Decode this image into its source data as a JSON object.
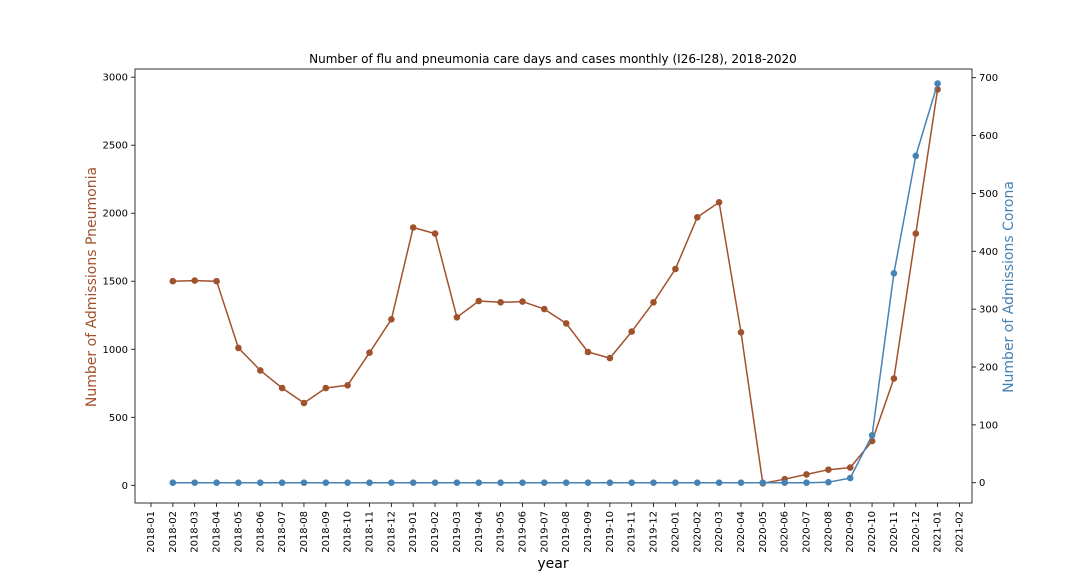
{
  "chart_data": {
    "type": "line",
    "title": "Number of flu and pneumonia care days and cases monthly (I26-I28), 2018-2020",
    "xlabel": "year",
    "ylabel_left": "Number of Admissions Pneumonia",
    "ylabel_right": "Number of Admissions Corona",
    "x_ticks": [
      "2018-01",
      "2018-02",
      "2018-03",
      "2018-04",
      "2018-05",
      "2018-06",
      "2018-07",
      "2018-08",
      "2018-09",
      "2018-10",
      "2018-11",
      "2018-12",
      "2019-01",
      "2019-02",
      "2019-03",
      "2019-04",
      "2019-05",
      "2019-06",
      "2019-07",
      "2019-08",
      "2019-09",
      "2019-10",
      "2019-11",
      "2019-12",
      "2020-01",
      "2020-02",
      "2020-03",
      "2020-04",
      "2020-05",
      "2020-06",
      "2020-07",
      "2020-08",
      "2020-09",
      "2020-10",
      "2020-11",
      "2020-12",
      "2021-01",
      "2021-02"
    ],
    "x": [
      "2018-02",
      "2018-03",
      "2018-04",
      "2018-05",
      "2018-06",
      "2018-07",
      "2018-08",
      "2018-09",
      "2018-10",
      "2018-11",
      "2018-12",
      "2019-01",
      "2019-02",
      "2019-03",
      "2019-04",
      "2019-05",
      "2019-06",
      "2019-07",
      "2019-08",
      "2019-09",
      "2019-10",
      "2019-11",
      "2019-12",
      "2020-01",
      "2020-02",
      "2020-03",
      "2020-04",
      "2020-05",
      "2020-06",
      "2020-07",
      "2020-08",
      "2020-09",
      "2020-10",
      "2020-11",
      "2020-12",
      "2021-01"
    ],
    "left_yticks": [
      0,
      500,
      1000,
      1500,
      2000,
      2500,
      3000
    ],
    "right_yticks": [
      0,
      100,
      200,
      300,
      400,
      500,
      600,
      700
    ],
    "ylim_left": [
      -130,
      3060
    ],
    "ylim_right": [
      -35,
      715
    ],
    "grid": false,
    "colors": {
      "pneumonia": "#a0522d",
      "corona": "#4682b4",
      "text": "#000000"
    },
    "series": [
      {
        "axis": "left",
        "color": "#a0522d",
        "values": [
          1500,
          1505,
          1500,
          1010,
          845,
          715,
          605,
          715,
          735,
          975,
          1220,
          1895,
          1850,
          1235,
          1355,
          1345,
          1350,
          1295,
          1190,
          980,
          935,
          1130,
          1345,
          1590,
          1970,
          2080,
          1125,
          15,
          45,
          80,
          115,
          130,
          325,
          785,
          1850,
          2910
        ]
      },
      {
        "axis": "right",
        "color": "#4682b4",
        "values": [
          0,
          0,
          0,
          0,
          0,
          0,
          0,
          0,
          0,
          0,
          0,
          0,
          0,
          0,
          0,
          0,
          0,
          0,
          0,
          0,
          0,
          0,
          0,
          0,
          0,
          0,
          0,
          0,
          0,
          0,
          1,
          8,
          82,
          362,
          565,
          690
        ]
      }
    ]
  }
}
